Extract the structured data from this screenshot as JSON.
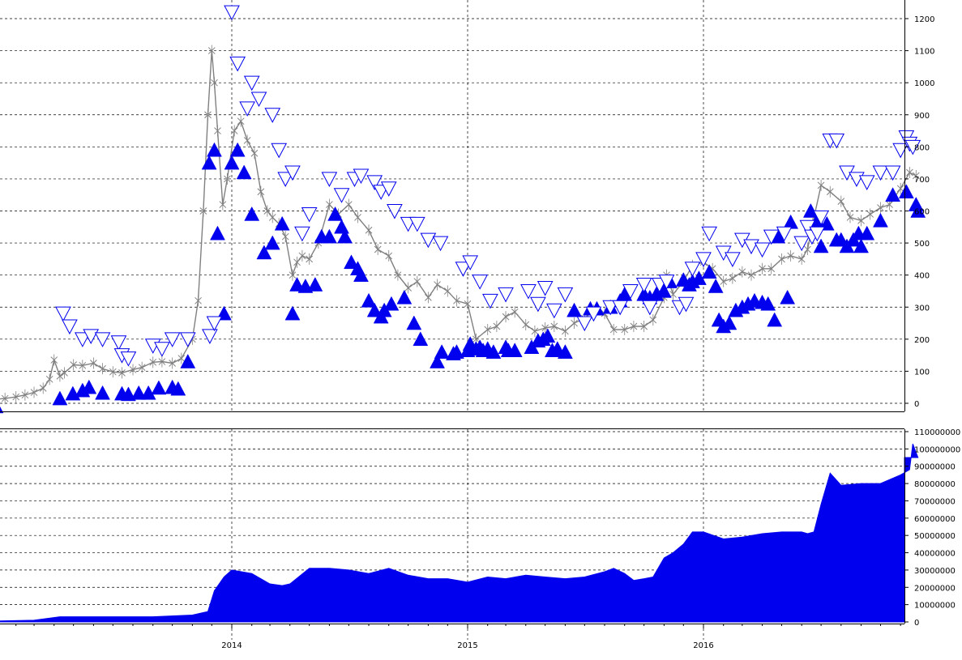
{
  "chart_data": [
    {
      "type": "line",
      "panel": "price",
      "title": "",
      "xlabel": "",
      "ylabel": "",
      "ylim": [
        -20,
        1230
      ],
      "y_ticks": [
        0,
        100,
        200,
        300,
        400,
        500,
        600,
        700,
        800,
        900,
        1000,
        1100,
        1200
      ],
      "y_tick_labels": [
        "0",
        "100",
        "200",
        "300",
        "400",
        "500",
        "600",
        "700",
        "800",
        "900",
        "1000",
        "1100",
        "1200"
      ],
      "grid": true,
      "legend": "none",
      "colors": {
        "price": "#808080",
        "buy_marker": "#0000EE",
        "sell_marker": "#0000EE",
        "grid": "#000000",
        "axis": "#000000"
      },
      "series": [
        {
          "marker": "cross",
          "x": [
            "2013-01-01",
            "2013-01-15",
            "2013-02-01",
            "2013-02-15",
            "2013-03-01",
            "2013-03-15",
            "2013-03-25",
            "2013-04-01",
            "2013-04-10",
            "2013-04-17",
            "2013-05-01",
            "2013-05-15",
            "2013-06-01",
            "2013-06-15",
            "2013-07-01",
            "2013-07-15",
            "2013-08-01",
            "2013-08-15",
            "2013-09-01",
            "2013-09-15",
            "2013-10-01",
            "2013-10-15",
            "2013-11-01",
            "2013-11-10",
            "2013-11-18",
            "2013-11-25",
            "2013-12-01",
            "2013-12-05",
            "2013-12-10",
            "2013-12-18",
            "2013-12-25",
            "2014-01-05",
            "2014-01-15",
            "2014-01-25",
            "2014-02-05",
            "2014-02-15",
            "2014-02-25",
            "2014-03-05",
            "2014-03-15",
            "2014-03-25",
            "2014-04-05",
            "2014-04-12",
            "2014-04-20",
            "2014-05-01",
            "2014-05-15",
            "2014-06-01",
            "2014-06-15",
            "2014-07-01",
            "2014-07-15",
            "2014-08-01",
            "2014-08-15",
            "2014-09-01",
            "2014-09-15",
            "2014-10-01",
            "2014-10-15",
            "2014-11-01",
            "2014-11-15",
            "2014-12-01",
            "2014-12-15",
            "2015-01-01",
            "2015-01-14",
            "2015-02-01",
            "2015-02-15",
            "2015-03-01",
            "2015-03-15",
            "2015-04-01",
            "2015-04-15",
            "2015-05-01",
            "2015-05-15",
            "2015-06-01",
            "2015-06-15",
            "2015-07-01",
            "2015-07-15",
            "2015-08-01",
            "2015-08-15",
            "2015-09-01",
            "2015-09-15",
            "2015-10-01",
            "2015-10-15",
            "2015-11-01",
            "2015-11-05",
            "2015-11-15",
            "2015-12-01",
            "2015-12-15",
            "2016-01-01",
            "2016-01-15",
            "2016-02-01",
            "2016-02-15",
            "2016-03-01",
            "2016-03-15",
            "2016-04-01",
            "2016-04-15",
            "2016-05-01",
            "2016-05-15",
            "2016-06-01",
            "2016-06-10",
            "2016-06-18",
            "2016-07-01",
            "2016-07-15",
            "2016-08-01",
            "2016-08-15",
            "2016-09-01",
            "2016-09-15",
            "2016-10-01",
            "2016-10-15",
            "2016-11-01",
            "2016-11-15",
            "2016-11-25"
          ],
          "y": [
            13,
            15,
            20,
            26,
            34,
            47,
            75,
            135,
            85,
            95,
            120,
            118,
            125,
            108,
            98,
            95,
            105,
            112,
            128,
            130,
            125,
            140,
            200,
            320,
            600,
            900,
            1100,
            1000,
            850,
            620,
            700,
            850,
            880,
            820,
            780,
            660,
            600,
            580,
            560,
            520,
            400,
            440,
            460,
            450,
            500,
            620,
            590,
            620,
            580,
            540,
            480,
            460,
            400,
            360,
            380,
            330,
            370,
            350,
            320,
            310,
            200,
            230,
            240,
            270,
            285,
            245,
            225,
            235,
            240,
            225,
            250,
            265,
            290,
            280,
            230,
            230,
            240,
            240,
            260,
            330,
            400,
            340,
            380,
            430,
            440,
            420,
            380,
            390,
            410,
            400,
            420,
            420,
            450,
            460,
            450,
            480,
            560,
            680,
            660,
            630,
            580,
            570,
            590,
            610,
            620,
            670,
            720,
            710
          ]
        },
        {
          "name": "",
          "marker": "triangle-up-filled",
          "x": [
            "2013-01-01",
            "2013-04-10",
            "2013-04-30",
            "2013-05-15",
            "2013-05-25",
            "2013-06-15",
            "2013-07-15",
            "2013-07-25",
            "2013-08-10",
            "2013-08-25",
            "2013-09-10",
            "2013-10-01",
            "2013-10-10",
            "2013-10-25",
            "2013-11-27",
            "2013-12-05",
            "2013-12-10",
            "2013-12-20",
            "2014-01-01",
            "2014-01-10",
            "2014-01-20",
            "2014-02-01",
            "2014-02-20",
            "2014-03-05",
            "2014-03-20",
            "2014-04-05",
            "2014-04-12",
            "2014-04-25",
            "2014-05-10",
            "2014-05-20",
            "2014-06-01",
            "2014-06-10",
            "2014-06-20",
            "2014-06-25",
            "2014-07-05",
            "2014-07-15",
            "2014-07-20",
            "2014-08-01",
            "2014-08-10",
            "2014-08-20",
            "2014-08-25",
            "2014-09-05",
            "2014-09-25",
            "2014-10-10",
            "2014-10-20",
            "2014-11-15",
            "2014-11-22",
            "2014-12-10",
            "2014-12-15",
            "2015-01-01",
            "2015-01-05",
            "2015-01-14",
            "2015-01-20",
            "2015-01-25",
            "2015-02-01",
            "2015-02-10",
            "2015-03-01",
            "2015-03-05",
            "2015-03-15",
            "2015-04-10",
            "2015-04-20",
            "2015-04-28",
            "2015-05-05",
            "2015-05-12",
            "2015-05-20",
            "2015-06-01",
            "2015-06-15",
            "2015-07-10",
            "2015-07-20",
            "2015-08-10",
            "2015-08-25",
            "2015-09-01",
            "2015-10-01",
            "2015-10-10",
            "2015-10-20",
            "2015-11-01",
            "2015-11-10",
            "2015-12-01",
            "2015-12-10",
            "2015-12-15",
            "2015-12-25",
            "2016-01-10",
            "2016-01-20",
            "2016-01-25",
            "2016-02-01",
            "2016-02-10",
            "2016-02-20",
            "2016-03-01",
            "2016-03-10",
            "2016-03-20",
            "2016-04-01",
            "2016-04-10",
            "2016-04-20",
            "2016-04-25",
            "2016-05-10",
            "2016-05-15",
            "2016-06-15",
            "2016-06-25",
            "2016-07-01",
            "2016-07-10",
            "2016-07-25",
            "2016-08-01",
            "2016-08-10",
            "2016-08-20",
            "2016-08-28",
            "2016-09-01",
            "2016-09-10",
            "2016-10-01",
            "2016-10-20",
            "2016-11-10",
            "2016-11-25",
            "2016-11-28"
          ],
          "y": [
            -10,
            15,
            30,
            40,
            50,
            32,
            30,
            28,
            32,
            32,
            48,
            50,
            45,
            130,
            750,
            790,
            530,
            280,
            750,
            790,
            720,
            590,
            470,
            500,
            560,
            280,
            370,
            365,
            370,
            520,
            520,
            590,
            550,
            520,
            440,
            420,
            400,
            320,
            290,
            270,
            290,
            310,
            330,
            250,
            200,
            130,
            160,
            155,
            160,
            165,
            185,
            170,
            175,
            165,
            170,
            160,
            175,
            165,
            165,
            175,
            195,
            200,
            210,
            165,
            170,
            160,
            290,
            295,
            295,
            300,
            320,
            340,
            340,
            330,
            340,
            350,
            380,
            385,
            370,
            380,
            390,
            410,
            365,
            260,
            240,
            250,
            290,
            300,
            310,
            320,
            315,
            310,
            260,
            520,
            330,
            565,
            600,
            570,
            490,
            560,
            510,
            510,
            490,
            510,
            530,
            490,
            530,
            570,
            650,
            660,
            620,
            600
          ]
        },
        {
          "name": "",
          "marker": "triangle-down-open",
          "x": [
            "2013-04-15",
            "2013-04-25",
            "2013-05-15",
            "2013-05-28",
            "2013-06-15",
            "2013-07-10",
            "2013-07-15",
            "2013-07-25",
            "2013-09-01",
            "2013-09-15",
            "2013-10-01",
            "2013-10-25",
            "2013-11-28",
            "2013-12-05",
            "2014-01-01",
            "2014-01-10",
            "2014-01-25",
            "2014-02-01",
            "2014-02-12",
            "2014-03-05",
            "2014-03-15",
            "2014-03-25",
            "2014-04-05",
            "2014-04-20",
            "2014-05-01",
            "2014-06-01",
            "2014-06-20",
            "2014-07-10",
            "2014-07-20",
            "2014-08-10",
            "2014-08-20",
            "2014-09-01",
            "2014-09-10",
            "2014-10-01",
            "2014-10-15",
            "2014-11-01",
            "2014-11-20",
            "2014-12-25",
            "2015-01-05",
            "2015-01-20",
            "2015-02-05",
            "2015-03-01",
            "2015-04-05",
            "2015-04-20",
            "2015-05-01",
            "2015-05-15",
            "2015-06-01",
            "2015-07-01",
            "2015-07-15",
            "2015-08-10",
            "2015-08-25",
            "2015-09-10",
            "2015-10-01",
            "2015-10-10",
            "2015-10-25",
            "2015-11-05",
            "2015-11-25",
            "2015-12-05",
            "2015-12-15",
            "2016-01-01",
            "2016-01-10",
            "2016-02-01",
            "2016-02-15",
            "2016-03-01",
            "2016-03-15",
            "2016-04-01",
            "2016-04-15",
            "2016-05-05",
            "2016-06-01",
            "2016-06-10",
            "2016-06-17",
            "2016-06-25",
            "2016-07-01",
            "2016-07-15",
            "2016-07-25",
            "2016-08-10",
            "2016-08-25",
            "2016-09-10",
            "2016-10-01",
            "2016-10-20",
            "2016-11-01",
            "2016-11-10",
            "2016-11-15",
            "2016-11-20"
          ],
          "y": [
            280,
            240,
            200,
            210,
            200,
            190,
            150,
            140,
            180,
            170,
            200,
            200,
            210,
            250,
            1220,
            1060,
            920,
            1000,
            950,
            900,
            790,
            700,
            720,
            530,
            590,
            700,
            650,
            700,
            710,
            690,
            660,
            670,
            600,
            560,
            560,
            510,
            500,
            420,
            440,
            380,
            320,
            340,
            350,
            310,
            360,
            290,
            340,
            250,
            280,
            300,
            300,
            350,
            370,
            300,
            370,
            380,
            300,
            310,
            420,
            450,
            530,
            470,
            450,
            510,
            490,
            480,
            520,
            530,
            500,
            550,
            520,
            530,
            580,
            820,
            820,
            720,
            700,
            690,
            720,
            720,
            790,
            830,
            810,
            800
          ]
        }
      ]
    },
    {
      "type": "area",
      "panel": "volume",
      "title": "",
      "xlabel": "",
      "ylabel": "",
      "ylim": [
        -5000000,
        112000000
      ],
      "y_ticks": [
        0,
        10000000,
        20000000,
        30000000,
        40000000,
        50000000,
        60000000,
        70000000,
        80000000,
        90000000,
        100000000,
        110000000
      ],
      "y_tick_labels": [
        "0",
        "10000000",
        "20000000",
        "30000000",
        "40000000",
        "50000000",
        "60000000",
        "70000000",
        "80000000",
        "90000000",
        "100000000",
        "110000000"
      ],
      "x_tick_labels": [
        "2014",
        "2015",
        "2016"
      ],
      "grid": true,
      "legend": "none",
      "colors": {
        "fill": "#0000EE",
        "grid": "#000000"
      },
      "series": [
        {
          "x": [
            "2013-01-01",
            "2013-03-01",
            "2013-04-10",
            "2013-05-01",
            "2013-07-01",
            "2013-09-01",
            "2013-11-01",
            "2013-11-25",
            "2013-12-05",
            "2013-12-20",
            "2014-01-01",
            "2014-02-01",
            "2014-03-01",
            "2014-03-20",
            "2014-04-01",
            "2014-05-01",
            "2014-06-01",
            "2014-07-01",
            "2014-08-01",
            "2014-09-01",
            "2014-10-01",
            "2014-11-01",
            "2014-12-01",
            "2015-01-01",
            "2015-02-01",
            "2015-03-01",
            "2015-04-01",
            "2015-05-01",
            "2015-06-01",
            "2015-07-01",
            "2015-08-01",
            "2015-08-15",
            "2015-09-01",
            "2015-09-15",
            "2015-10-01",
            "2015-10-15",
            "2015-11-01",
            "2015-11-15",
            "2015-12-01",
            "2015-12-15",
            "2016-01-01",
            "2016-02-01",
            "2016-03-01",
            "2016-04-01",
            "2016-05-01",
            "2016-06-01",
            "2016-06-10",
            "2016-06-20",
            "2016-07-01",
            "2016-07-15",
            "2016-08-01",
            "2016-09-01",
            "2016-10-01",
            "2016-11-01",
            "2016-11-15",
            "2016-11-20",
            "2016-11-28"
          ],
          "y": [
            500000,
            1000000,
            3000000,
            3000000,
            3000000,
            3000000,
            4000000,
            6000000,
            18000000,
            26000000,
            30000000,
            28000000,
            22000000,
            21000000,
            22000000,
            31000000,
            31000000,
            30000000,
            28000000,
            31000000,
            27000000,
            25000000,
            25000000,
            23000000,
            26000000,
            25000000,
            27000000,
            26000000,
            25000000,
            26000000,
            29000000,
            31000000,
            28000000,
            24000000,
            25000000,
            26000000,
            37000000,
            40000000,
            45000000,
            52000000,
            52000000,
            48000000,
            49000000,
            51000000,
            52000000,
            52000000,
            51000000,
            52000000,
            68000000,
            86000000,
            79000000,
            80000000,
            80000000,
            85000000,
            88000000,
            103000000,
            95000000
          ]
        }
      ]
    }
  ]
}
